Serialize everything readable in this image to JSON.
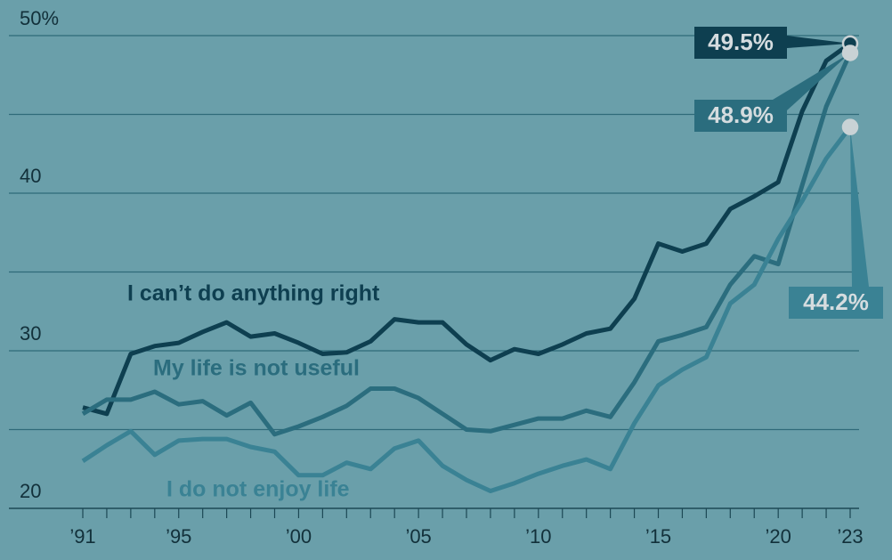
{
  "chart_data": {
    "type": "line",
    "x": [
      1991,
      1992,
      1993,
      1994,
      1995,
      1996,
      1997,
      1998,
      1999,
      2000,
      2001,
      2002,
      2003,
      2004,
      2005,
      2006,
      2007,
      2008,
      2009,
      2010,
      2011,
      2012,
      2013,
      2014,
      2015,
      2016,
      2017,
      2018,
      2019,
      2020,
      2021,
      2022,
      2023
    ],
    "series": [
      {
        "name": "I can’t do anything right",
        "color": "#0e3f50",
        "values": [
          26.4,
          26.0,
          29.8,
          30.3,
          30.5,
          31.2,
          31.8,
          30.9,
          31.1,
          30.5,
          29.8,
          29.9,
          30.6,
          32.0,
          31.8,
          31.8,
          30.4,
          29.4,
          30.1,
          29.8,
          30.4,
          31.1,
          31.4,
          33.3,
          36.8,
          36.3,
          36.8,
          39.0,
          39.8,
          40.7,
          45.2,
          48.4,
          49.5
        ],
        "value_labels": [
          null,
          null,
          null,
          null,
          null,
          null,
          null,
          null,
          null,
          null,
          null,
          null,
          null,
          null,
          null,
          null,
          null,
          null,
          null,
          null,
          null,
          null,
          null,
          null,
          null,
          null,
          null,
          null,
          null,
          null,
          null,
          null,
          "49.5%"
        ]
      },
      {
        "name": "My life is not useful",
        "color": "#2b6d7e",
        "values": [
          26.0,
          26.9,
          26.9,
          27.4,
          26.6,
          26.8,
          25.9,
          26.7,
          24.7,
          25.2,
          25.8,
          26.5,
          27.6,
          27.6,
          27.0,
          26.0,
          25.0,
          24.9,
          25.3,
          25.7,
          25.7,
          26.2,
          25.8,
          28.0,
          30.6,
          31.0,
          31.5,
          34.2,
          36.0,
          35.5,
          40.5,
          45.5,
          48.9
        ],
        "value_labels": [
          null,
          null,
          null,
          null,
          null,
          null,
          null,
          null,
          null,
          null,
          null,
          null,
          null,
          null,
          null,
          null,
          null,
          null,
          null,
          null,
          null,
          null,
          null,
          null,
          null,
          null,
          null,
          null,
          null,
          null,
          null,
          null,
          "48.9%"
        ]
      },
      {
        "name": "I do not enjoy life",
        "color": "#3a8294",
        "values": [
          23.0,
          24.0,
          24.9,
          23.4,
          24.3,
          24.4,
          24.4,
          23.9,
          23.6,
          22.1,
          22.1,
          22.9,
          22.5,
          23.8,
          24.3,
          22.7,
          21.8,
          21.1,
          21.6,
          22.2,
          22.7,
          23.1,
          22.5,
          25.4,
          27.8,
          28.8,
          29.6,
          33.0,
          34.2,
          37.1,
          39.5,
          42.2,
          44.2
        ],
        "value_labels": [
          null,
          null,
          null,
          null,
          null,
          null,
          null,
          null,
          null,
          null,
          null,
          null,
          null,
          null,
          null,
          null,
          null,
          null,
          null,
          null,
          null,
          null,
          null,
          null,
          null,
          null,
          null,
          null,
          null,
          null,
          null,
          null,
          "44.2%"
        ]
      }
    ],
    "xlim": [
      1991,
      2023
    ],
    "xticks": [
      {
        "value": 1991,
        "label": "’91"
      },
      {
        "value": 1995,
        "label": "’95"
      },
      {
        "value": 2000,
        "label": "’00"
      },
      {
        "value": 2005,
        "label": "’05"
      },
      {
        "value": 2010,
        "label": "’10"
      },
      {
        "value": 2015,
        "label": "’15"
      },
      {
        "value": 2020,
        "label": "’20"
      },
      {
        "value": 2023,
        "label": "’23"
      }
    ],
    "x_minor_ticks": [
      1991,
      1992,
      1993,
      1994,
      1995,
      1996,
      1997,
      1998,
      1999,
      2000,
      2001,
      2002,
      2003,
      2004,
      2005,
      2006,
      2007,
      2008,
      2009,
      2010,
      2011,
      2012,
      2013,
      2014,
      2015,
      2016,
      2017,
      2018,
      2019,
      2020,
      2021,
      2022,
      2023
    ],
    "ylim": [
      20,
      50
    ],
    "yticks": [
      20,
      30,
      40,
      {
        "value": 50,
        "label": "50%"
      }
    ],
    "y_minor_ticks": [
      25,
      35,
      45
    ],
    "grid": true
  }
}
